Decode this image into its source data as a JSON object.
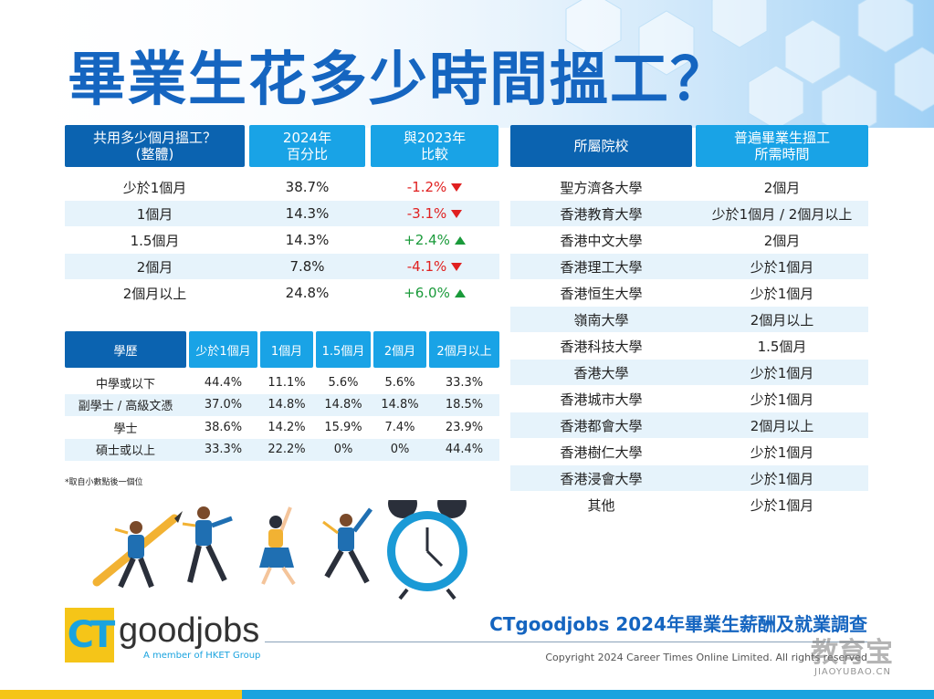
{
  "title": "畢業生花多少時間搵工？",
  "overall_table": {
    "headers": {
      "col1_line1": "共用多少個月搵工？",
      "col1_line2": "(整體)",
      "col2_line1": "2024年",
      "col2_line2": "百分比",
      "col3_line1": "與2023年",
      "col3_line2": "比較"
    },
    "rows": [
      {
        "duration": "少於1個月",
        "percent": "38.7%",
        "change": "-1.2%",
        "trend": "down"
      },
      {
        "duration": "1個月",
        "percent": "14.3%",
        "change": "-3.1%",
        "trend": "down"
      },
      {
        "duration": "1.5個月",
        "percent": "14.3%",
        "change": "+2.4%",
        "trend": "up"
      },
      {
        "duration": "2個月",
        "percent": "7.8%",
        "change": "-4.1%",
        "trend": "down"
      },
      {
        "duration": "2個月以上",
        "percent": "24.8%",
        "change": "+6.0%",
        "trend": "up"
      }
    ]
  },
  "education_table": {
    "headers": [
      "學歷",
      "少於1個月",
      "1個月",
      "1.5個月",
      "2個月",
      "2個月以上"
    ],
    "rows": [
      [
        "中學或以下",
        "44.4%",
        "11.1%",
        "5.6%",
        "5.6%",
        "33.3%"
      ],
      [
        "副學士 / 高級文憑",
        "37.0%",
        "14.8%",
        "14.8%",
        "14.8%",
        "18.5%"
      ],
      [
        "學士",
        "38.6%",
        "14.2%",
        "15.9%",
        "7.4%",
        "23.9%"
      ],
      [
        "碩士或以上",
        "33.3%",
        "22.2%",
        "0%",
        "0%",
        "44.4%"
      ]
    ],
    "footnote": "*取自小數點後一個位"
  },
  "university_table": {
    "headers": {
      "col1": "所屬院校",
      "col2_line1": "普遍畢業生搵工",
      "col2_line2": "所需時間"
    },
    "rows": [
      [
        "聖方濟各大學",
        "2個月"
      ],
      [
        "香港教育大學",
        "少於1個月 / 2個月以上"
      ],
      [
        "香港中文大學",
        "2個月"
      ],
      [
        "香港理工大學",
        "少於1個月"
      ],
      [
        "香港恒生大學",
        "少於1個月"
      ],
      [
        "嶺南大學",
        "2個月以上"
      ],
      [
        "香港科技大學",
        "1.5個月"
      ],
      [
        "香港大學",
        "少於1個月"
      ],
      [
        "香港城市大學",
        "少於1個月"
      ],
      [
        "香港都會大學",
        "2個月以上"
      ],
      [
        "香港樹仁大學",
        "少於1個月"
      ],
      [
        "香港浸會大學",
        "少於1個月"
      ],
      [
        "其他",
        "少於1個月"
      ]
    ]
  },
  "footer": {
    "survey_title": "CTgoodjobs 2024年畢業生薪酬及就業調查",
    "copyright": "Copyright 2024 Career Times Online Limited. All rights reserved",
    "logo_ct": "CT",
    "logo_goodjobs": "goodjobs",
    "logo_tagline": "A member of HKET Group",
    "watermark": "教育宝",
    "watermark_sub": "JIAOYUBAO.CN"
  },
  "colors": {
    "dark_blue": "#0b63b0",
    "light_blue": "#19a3e6",
    "row_shade": "#e6f3fb",
    "down_red": "#e02020",
    "up_green": "#1a9a3a",
    "brand_yellow": "#f5c518"
  },
  "icons": [
    "arrow-down-icon",
    "arrow-up-icon",
    "alarm-clock-icon",
    "running-people-illustration"
  ]
}
